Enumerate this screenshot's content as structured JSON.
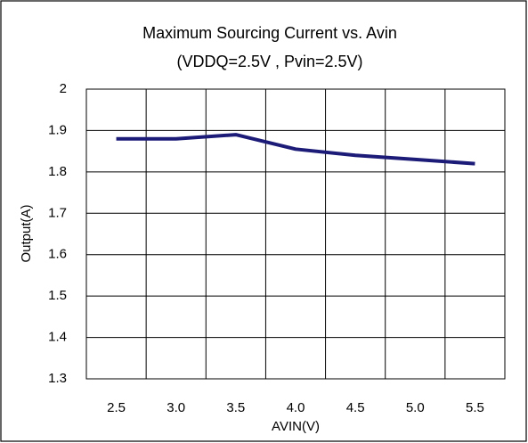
{
  "chart_data": {
    "type": "line",
    "title": "Maximum Sourcing Current vs. Avin",
    "subtitle": "(VDDQ=2.5V , Pvin=2.5V)",
    "x_label": "AVIN(V)",
    "y_label": "Output(A)",
    "categories": [
      "2.5",
      "3.0",
      "3.5",
      "4.0",
      "4.5",
      "5.0",
      "5.5"
    ],
    "series": [
      {
        "name": "Output",
        "color": "#1c1c78",
        "values": [
          1.88,
          1.88,
          1.89,
          1.855,
          1.84,
          1.83,
          1.82
        ]
      }
    ],
    "ylim": [
      1.3,
      2
    ],
    "yticks": [
      1.3,
      1.4,
      1.5,
      1.6,
      1.7,
      1.8,
      1.9,
      2
    ],
    "grid": true
  }
}
